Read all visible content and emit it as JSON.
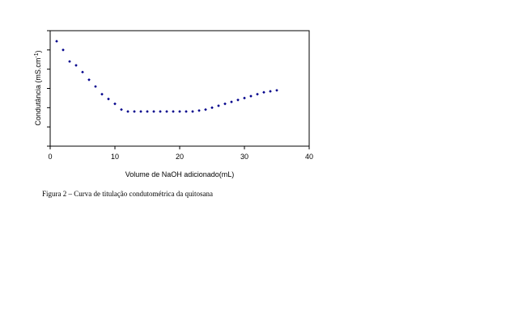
{
  "chart_data": {
    "type": "scatter",
    "title": "",
    "xlabel": "Volume de NaOH adicionado(mL)",
    "ylabel": "Condutância (mS.cm",
    "ylabel_superscript": "-1",
    "ylabel_suffix": ")",
    "xlim": [
      0,
      40
    ],
    "x_ticks": [
      "0",
      "10",
      "20",
      "30",
      "40"
    ],
    "ylim": [
      0,
      6
    ],
    "y_ticks_count": 7,
    "grid": false,
    "legend": "none",
    "marker_color": "#00008B",
    "points": [
      {
        "x": 1,
        "y": 5.45
      },
      {
        "x": 2,
        "y": 5.0
      },
      {
        "x": 3,
        "y": 4.4
      },
      {
        "x": 4,
        "y": 4.2
      },
      {
        "x": 5,
        "y": 3.85
      },
      {
        "x": 6,
        "y": 3.45
      },
      {
        "x": 7,
        "y": 3.1
      },
      {
        "x": 8,
        "y": 2.7
      },
      {
        "x": 9,
        "y": 2.45
      },
      {
        "x": 10,
        "y": 2.2
      },
      {
        "x": 11,
        "y": 1.9
      },
      {
        "x": 12,
        "y": 1.8
      },
      {
        "x": 13,
        "y": 1.8
      },
      {
        "x": 14,
        "y": 1.8
      },
      {
        "x": 15,
        "y": 1.8
      },
      {
        "x": 16,
        "y": 1.8
      },
      {
        "x": 17,
        "y": 1.8
      },
      {
        "x": 18,
        "y": 1.8
      },
      {
        "x": 19,
        "y": 1.8
      },
      {
        "x": 20,
        "y": 1.8
      },
      {
        "x": 21,
        "y": 1.8
      },
      {
        "x": 22,
        "y": 1.8
      },
      {
        "x": 23,
        "y": 1.85
      },
      {
        "x": 24,
        "y": 1.9
      },
      {
        "x": 25,
        "y": 2.0
      },
      {
        "x": 26,
        "y": 2.1
      },
      {
        "x": 27,
        "y": 2.2
      },
      {
        "x": 28,
        "y": 2.3
      },
      {
        "x": 29,
        "y": 2.4
      },
      {
        "x": 30,
        "y": 2.5
      },
      {
        "x": 31,
        "y": 2.6
      },
      {
        "x": 32,
        "y": 2.7
      },
      {
        "x": 33,
        "y": 2.8
      },
      {
        "x": 34,
        "y": 2.85
      },
      {
        "x": 35,
        "y": 2.9
      }
    ]
  },
  "caption": "Figura 2 – Curva de titulação condutométrica da quitosana"
}
